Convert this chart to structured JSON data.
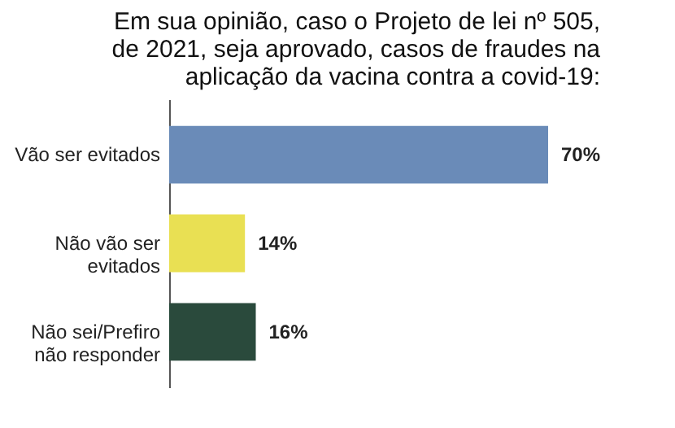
{
  "chart_data": {
    "type": "bar",
    "orientation": "horizontal",
    "title": "Em sua opinião, caso o Projeto de lei nº 505,\nde 2021, seja aprovado, casos de fraudes na\naplicação da vacina contra a covid-19:",
    "categories": [
      "Vão ser evitados",
      "Não vão ser\nevitados",
      "Não sei/Prefiro\nnão responder"
    ],
    "values": [
      70,
      14,
      16
    ],
    "colors": [
      "#6a8bb8",
      "#e9e053",
      "#2a4a3c"
    ],
    "value_labels": [
      "70%",
      "14%",
      "16%"
    ],
    "tick_labels": "y"
  }
}
